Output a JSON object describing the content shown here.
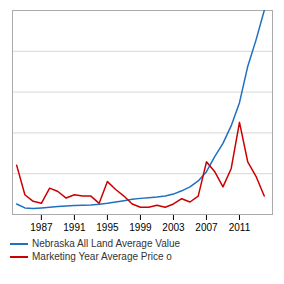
{
  "chart_data": {
    "type": "line",
    "x": [
      1984,
      1985,
      1986,
      1987,
      1988,
      1989,
      1990,
      1991,
      1992,
      1993,
      1994,
      1995,
      1996,
      1997,
      1998,
      1999,
      2000,
      2001,
      2002,
      2003,
      2004,
      2005,
      2006,
      2007,
      2008,
      2009,
      2010,
      2011,
      2012,
      2013,
      2014
    ],
    "series": [
      {
        "name": "Nebraska All Land Average Value",
        "color": "#2070C0",
        "values": [
          560,
          500,
          490,
          500,
          510,
          520,
          530,
          535,
          540,
          545,
          555,
          570,
          590,
          610,
          630,
          645,
          655,
          665,
          680,
          710,
          760,
          820,
          910,
          1050,
          1280,
          1480,
          1750,
          2100,
          2650,
          3050,
          3500
        ]
      },
      {
        "name": "Marketing Year Average Price o",
        "color": "#CC0000",
        "values": [
          1150,
          700,
          600,
          570,
          800,
          750,
          650,
          700,
          680,
          680,
          570,
          900,
          780,
          680,
          560,
          510,
          510,
          540,
          510,
          560,
          640,
          590,
          680,
          1200,
          1050,
          820,
          1100,
          1800,
          1200,
          980,
          680
        ]
      }
    ],
    "xlim": [
      1983.5,
      2015
    ],
    "xticks": [
      1987,
      1991,
      1995,
      1999,
      2003,
      2007,
      2011
    ],
    "ylim": [
      400,
      3500
    ],
    "yticks": [
      400,
      1020,
      1640,
      2260,
      2880,
      3500
    ],
    "grid": true,
    "tick_labels": "x",
    "legend": "bottom"
  }
}
